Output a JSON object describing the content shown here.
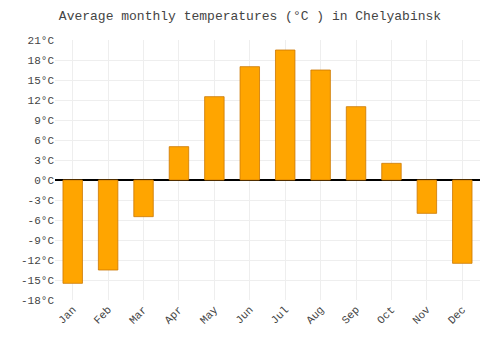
{
  "chart_data": {
    "type": "bar",
    "title": "Average monthly temperatures (°C ) in Chelyabinsk",
    "categories": [
      "Jan",
      "Feb",
      "Mar",
      "Apr",
      "May",
      "Jun",
      "Jul",
      "Aug",
      "Sep",
      "Oct",
      "Nov",
      "Dec"
    ],
    "values": [
      -15.5,
      -13.5,
      -5.5,
      5.0,
      12.5,
      17.0,
      19.5,
      16.5,
      11.0,
      2.5,
      -5.0,
      -12.5
    ],
    "color": "#FFA500",
    "ylim": [
      -18,
      21
    ],
    "yticks": [
      {
        "value": -18,
        "label": "-18°C"
      },
      {
        "value": -15,
        "label": "-15°C"
      },
      {
        "value": -12,
        "label": "-12°C"
      },
      {
        "value": -9,
        "label": "-9°C"
      },
      {
        "value": -6,
        "label": "-6°C"
      },
      {
        "value": -3,
        "label": "-3°C"
      },
      {
        "value": 0,
        "label": "0°C"
      },
      {
        "value": 3,
        "label": "3°C"
      },
      {
        "value": 6,
        "label": "6°C"
      },
      {
        "value": 9,
        "label": "9°C"
      },
      {
        "value": 12,
        "label": "12°C"
      },
      {
        "value": 15,
        "label": "15°C"
      },
      {
        "value": 18,
        "label": "18°C"
      },
      {
        "value": 21,
        "label": "21°C"
      }
    ],
    "grid": true
  }
}
